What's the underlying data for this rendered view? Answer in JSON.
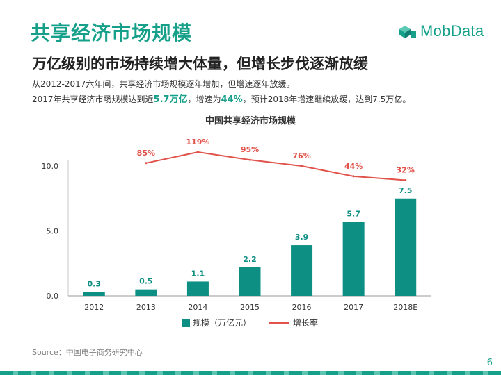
{
  "header": {
    "title": "共享经济市场规模",
    "logo_text": "MobData",
    "subtitle": "万亿级别的市场持续增大体量，但增长步伐逐渐放缓"
  },
  "description": {
    "line1": "从2012-2017六年间，共享经济市场规模逐年增加，但增速逐年放缓。",
    "line2_pre": "2017年共享经济市场规模达到近",
    "line2_hl1": "5.7万亿",
    "line2_mid": "，增速为",
    "line2_hl2": "44%",
    "line2_post": "，预计2018年增速继续放缓，达到7.5万亿。"
  },
  "chart_data": {
    "type": "bar",
    "title": "中国共享经济市场规模",
    "categories": [
      "2012",
      "2013",
      "2014",
      "2015",
      "2016",
      "2017",
      "2018E"
    ],
    "series": [
      {
        "name": "规模（万亿元）",
        "type": "bar",
        "values": [
          0.3,
          0.5,
          1.1,
          2.2,
          3.9,
          5.7,
          7.5
        ],
        "labels": [
          "0.3",
          "0.5",
          "1.1",
          "2.2",
          "3.9",
          "5.7",
          "7.5"
        ],
        "color": "#0e8f84"
      },
      {
        "name": "增长率",
        "type": "line",
        "values": [
          null,
          85,
          119,
          95,
          76,
          44,
          32
        ],
        "labels": [
          "",
          "85%",
          "119%",
          "95%",
          "76%",
          "44%",
          "32%"
        ],
        "color": "#e0524a"
      }
    ],
    "yticks": [
      "0.0",
      "5.0",
      "10.0"
    ],
    "ylim": [
      0,
      10
    ],
    "legend": "bottom"
  },
  "footer": {
    "source": "Source：中国电子商务研究中心",
    "page_number": "6"
  },
  "colors": {
    "brand": "#16a08a",
    "bar": "#0e8f84",
    "line": "#e0524a"
  }
}
